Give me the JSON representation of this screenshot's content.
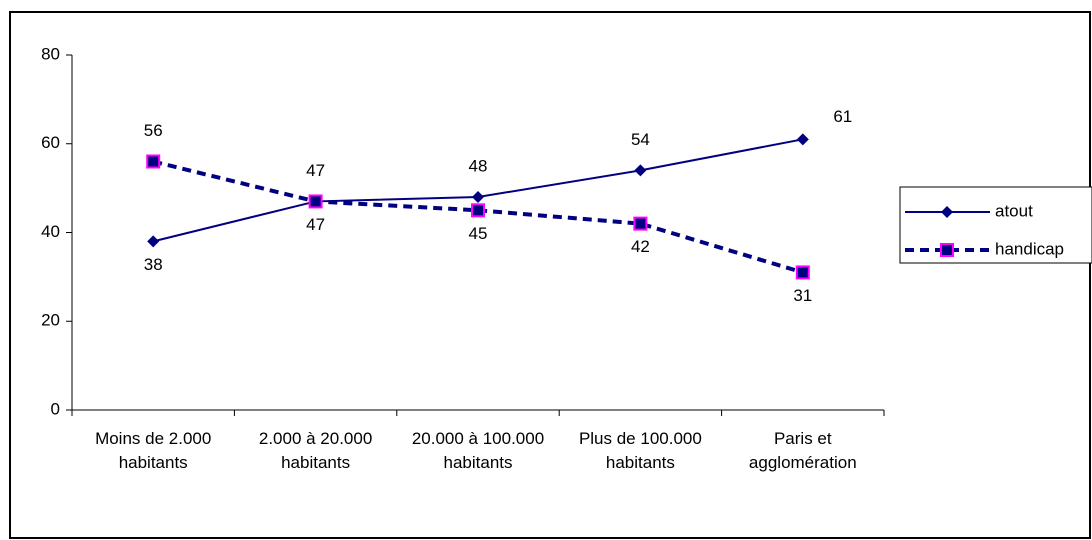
{
  "chart_data": {
    "type": "line",
    "categories": [
      "Moins de 2.000 habitants",
      "2.000 à 20.000 habitants",
      "20.000 à 100.000 habitants",
      "Plus de 100.000 habitants",
      "Paris et agglomération"
    ],
    "series": [
      {
        "name": "atout",
        "color": "#000080",
        "values": [
          38,
          47,
          48,
          54,
          61
        ]
      },
      {
        "name": "handicap",
        "color": "#000080",
        "values": [
          56,
          47,
          45,
          42,
          31
        ]
      }
    ],
    "ylim": [
      0,
      80
    ],
    "yticks": [
      0,
      20,
      40,
      60,
      80
    ],
    "grid": false,
    "legend": "right"
  }
}
